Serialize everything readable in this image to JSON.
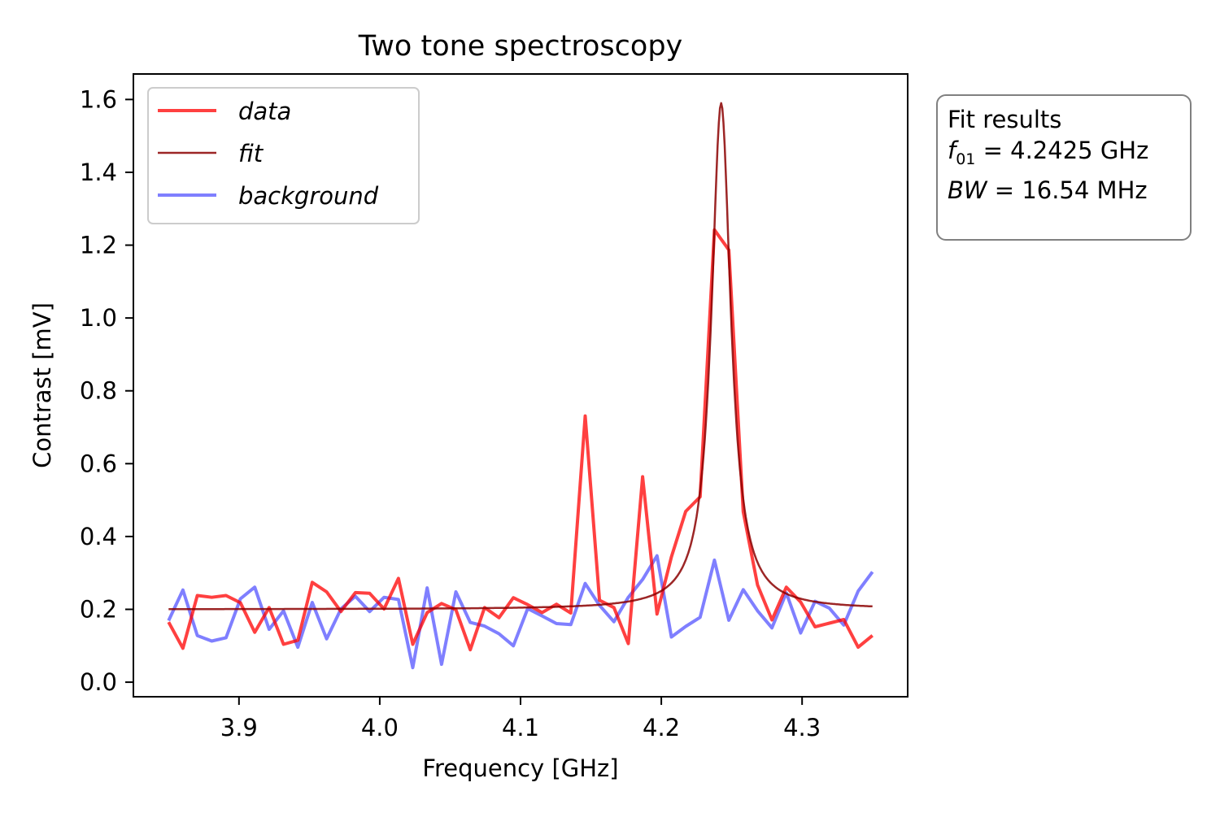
{
  "chart_data": {
    "type": "line",
    "title": "Two tone spectroscopy",
    "xlabel": "Frequency [GHz]",
    "ylabel": "Contrast [mV]",
    "xlim": [
      3.825,
      4.375
    ],
    "ylim": [
      -0.04,
      1.67
    ],
    "xticks": [
      3.9,
      4.0,
      4.1,
      4.2,
      4.3
    ],
    "xtick_labels": [
      "3.9",
      "4.0",
      "4.1",
      "4.2",
      "4.3"
    ],
    "yticks": [
      0.0,
      0.2,
      0.4,
      0.6,
      0.8,
      1.0,
      1.2,
      1.4,
      1.6
    ],
    "ytick_labels": [
      "0.0",
      "0.2",
      "0.4",
      "0.6",
      "0.8",
      "1.0",
      "1.2",
      "1.4",
      "1.6"
    ],
    "grid": false,
    "legend_position": "top-left",
    "x": [
      3.85,
      3.860204,
      3.870408,
      3.880612,
      3.890816,
      3.90102,
      3.911224,
      3.921429,
      3.931633,
      3.941837,
      3.952041,
      3.962245,
      3.972449,
      3.982653,
      3.992857,
      4.003061,
      4.013265,
      4.023469,
      4.033673,
      4.043878,
      4.054082,
      4.064286,
      4.07449,
      4.084694,
      4.094898,
      4.105102,
      4.115306,
      4.12551,
      4.135714,
      4.145918,
      4.156122,
      4.166327,
      4.176531,
      4.186735,
      4.196939,
      4.207143,
      4.217347,
      4.227551,
      4.237755,
      4.247959,
      4.258163,
      4.268367,
      4.278571,
      4.288776,
      4.29898,
      4.309184,
      4.319388,
      4.329592,
      4.339796,
      4.35
    ],
    "series": [
      {
        "name": "data",
        "color": "#ff0000",
        "values": [
          0.165,
          0.093,
          0.238,
          0.233,
          0.238,
          0.218,
          0.137,
          0.205,
          0.104,
          0.115,
          0.274,
          0.248,
          0.194,
          0.246,
          0.244,
          0.201,
          0.285,
          0.104,
          0.191,
          0.216,
          0.199,
          0.089,
          0.205,
          0.177,
          0.232,
          0.213,
          0.191,
          0.214,
          0.19,
          0.731,
          0.225,
          0.205,
          0.106,
          0.564,
          0.187,
          0.344,
          0.469,
          0.509,
          1.242,
          1.187,
          0.468,
          0.267,
          0.171,
          0.261,
          0.22,
          0.152,
          0.162,
          0.172,
          0.096,
          0.128
        ]
      },
      {
        "name": "fit",
        "color": "#8b0000",
        "f0": 4.2425,
        "bw": 0.01654,
        "offset": 0.2,
        "amplitude": 1.39
      },
      {
        "name": "background",
        "color": "#0000ff",
        "values": [
          0.169,
          0.253,
          0.128,
          0.113,
          0.122,
          0.229,
          0.261,
          0.145,
          0.196,
          0.096,
          0.219,
          0.119,
          0.201,
          0.236,
          0.194,
          0.233,
          0.227,
          0.04,
          0.259,
          0.049,
          0.248,
          0.164,
          0.154,
          0.133,
          0.1,
          0.202,
          0.182,
          0.161,
          0.158,
          0.271,
          0.211,
          0.166,
          0.233,
          0.282,
          0.347,
          0.124,
          0.153,
          0.178,
          0.335,
          0.17,
          0.254,
          0.196,
          0.149,
          0.245,
          0.135,
          0.222,
          0.203,
          0.157,
          0.25,
          0.303
        ]
      }
    ]
  },
  "fit_box": {
    "title": "Fit results",
    "f01_symbol": "f",
    "f01_sub": "01",
    "f01_value": " = 4.2425 GHz",
    "bw_symbol": "BW",
    "bw_value": " = 16.54 MHz"
  }
}
